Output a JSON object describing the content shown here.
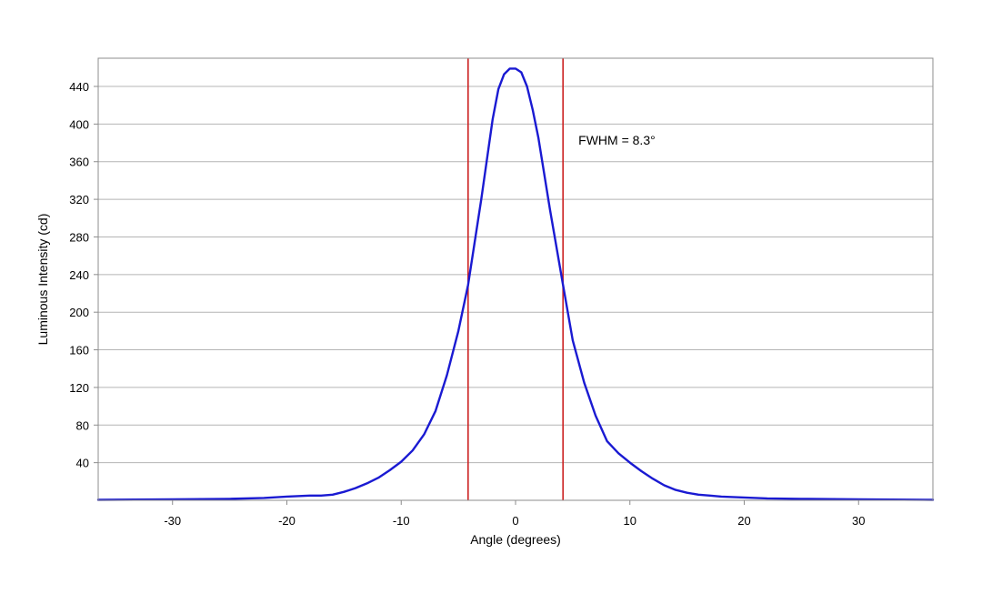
{
  "chart_data": {
    "type": "line",
    "title": "",
    "xlabel": "Angle (degrees)",
    "ylabel": "Luminous Intensity (cd)",
    "xlim": [
      -36.5,
      36.5
    ],
    "ylim": [
      0,
      470
    ],
    "x_ticks": [
      -30,
      -20,
      -10,
      0,
      10,
      20,
      30
    ],
    "x_tick_labels": [
      "-30",
      "-20",
      "-10",
      "0",
      "10",
      "20",
      "30"
    ],
    "y_ticks": [
      40,
      80,
      120,
      160,
      200,
      240,
      280,
      320,
      360,
      400,
      440
    ],
    "y_tick_labels": [
      "40",
      "80",
      "120",
      "160",
      "200",
      "240",
      "280",
      "320",
      "360",
      "400",
      "440"
    ],
    "grid": "horizontal",
    "series": [
      {
        "color": "#1a1ad2",
        "x": [
          -36.5,
          -30,
          -25,
          -22,
          -20,
          -18,
          -17,
          -16,
          -15,
          -14,
          -13,
          -12,
          -11,
          -10,
          -9,
          -8,
          -7,
          -6,
          -5,
          -4.15,
          -3,
          -2,
          -1.5,
          -1,
          -0.5,
          0,
          0.5,
          1,
          1.5,
          2,
          3,
          4.15,
          5,
          6,
          7,
          8,
          9,
          10,
          11,
          12,
          13,
          14,
          15,
          16,
          17,
          18,
          20,
          22,
          25,
          30,
          36.5
        ],
        "y": [
          0.5,
          1,
          1.5,
          2.5,
          4,
          5,
          5,
          6,
          9,
          13,
          18,
          24,
          32,
          41,
          53,
          70,
          95,
          133,
          180,
          229,
          320,
          405,
          437,
          453,
          459,
          459,
          455,
          440,
          415,
          385,
          310,
          229,
          170,
          125,
          90,
          63,
          50,
          40,
          31,
          23,
          16,
          11,
          8,
          6,
          5,
          4,
          3,
          2,
          1.5,
          1,
          0.5
        ]
      }
    ],
    "markers": [
      {
        "x": -4.15,
        "color": "#cc2222"
      },
      {
        "x": 4.15,
        "color": "#cc2222"
      }
    ],
    "annotations": [
      {
        "text": "FWHM = 8.3°",
        "x": 5.5,
        "y": 378
      }
    ]
  }
}
